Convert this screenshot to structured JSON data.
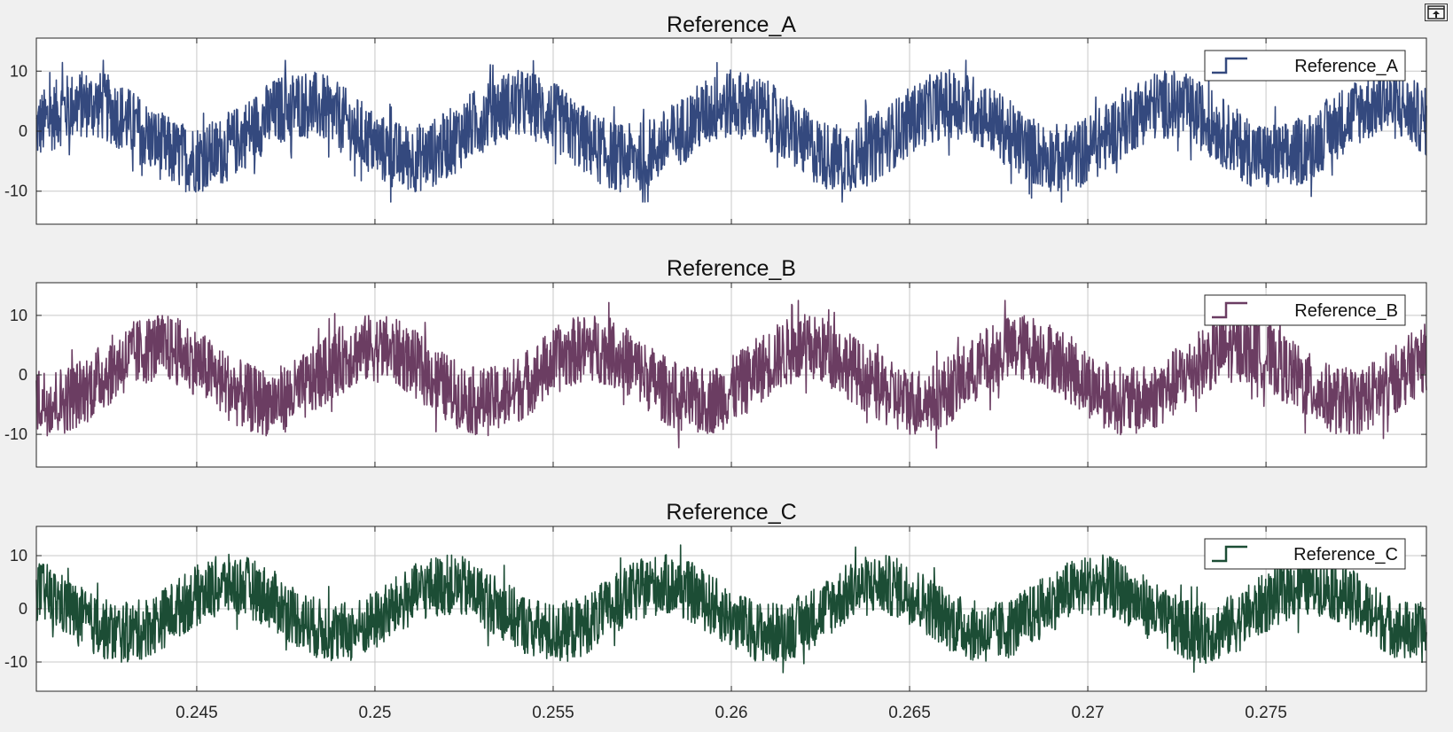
{
  "chart_data": [
    {
      "type": "line",
      "title": "Reference_A",
      "xlabel": "",
      "ylabel": "",
      "xlim": [
        0.2405,
        0.2795
      ],
      "ylim": [
        -15.5,
        15.5
      ],
      "yticks": [
        -10,
        0,
        10
      ],
      "xticks": [
        0.245,
        0.25,
        0.255,
        0.26,
        0.265,
        0.27,
        0.275
      ],
      "xticklabels": [],
      "grid": true,
      "legend": "top-right",
      "series": [
        {
          "name": "Reference_A",
          "color": "#34497e",
          "frequency_hz": 165,
          "phase_rad": 2.09,
          "offset": 0,
          "envelope_upper": 5.5,
          "envelope_lower": -5.5,
          "sine_amplitude": 4.5,
          "noise_pp": 11.5,
          "peak_max": 11.8,
          "peak_min": -11.8
        }
      ]
    },
    {
      "type": "line",
      "title": "Reference_B",
      "xlabel": "",
      "ylabel": "",
      "xlim": [
        0.2405,
        0.2795
      ],
      "ylim": [
        -15.5,
        15.5
      ],
      "yticks": [
        -10,
        0,
        10
      ],
      "xticks": [
        0.245,
        0.25,
        0.255,
        0.26,
        0.265,
        0.27,
        0.275
      ],
      "xticklabels": [],
      "grid": true,
      "legend": "top-right",
      "series": [
        {
          "name": "Reference_B",
          "color": "#6b3d62",
          "frequency_hz": 165,
          "phase_rad": 0.0,
          "offset": 0,
          "sine_amplitude": 4.5,
          "noise_pp": 11.5,
          "peak_max": 12.5,
          "peak_min": -12.5
        }
      ]
    },
    {
      "type": "line",
      "title": "Reference_C",
      "xlabel": "",
      "ylabel": "",
      "xlim": [
        0.2405,
        0.2795
      ],
      "ylim": [
        -15.5,
        15.5
      ],
      "yticks": [
        -10,
        0,
        10
      ],
      "xticks": [
        0.245,
        0.25,
        0.255,
        0.26,
        0.265,
        0.27,
        0.275
      ],
      "xticklabels": [
        "0.245",
        "0.25",
        "0.255",
        "0.26",
        "0.265",
        "0.27",
        "0.275"
      ],
      "grid": true,
      "legend": "top-right",
      "series": [
        {
          "name": "Reference_C",
          "color": "#1c4d35",
          "frequency_hz": 165,
          "phase_rad": 4.19,
          "offset": 0,
          "sine_amplitude": 4.5,
          "noise_pp": 11.5,
          "peak_max": 12.0,
          "peak_min": -12.0
        }
      ]
    }
  ],
  "toolbar": {
    "undock_icon": "undock-icon"
  }
}
